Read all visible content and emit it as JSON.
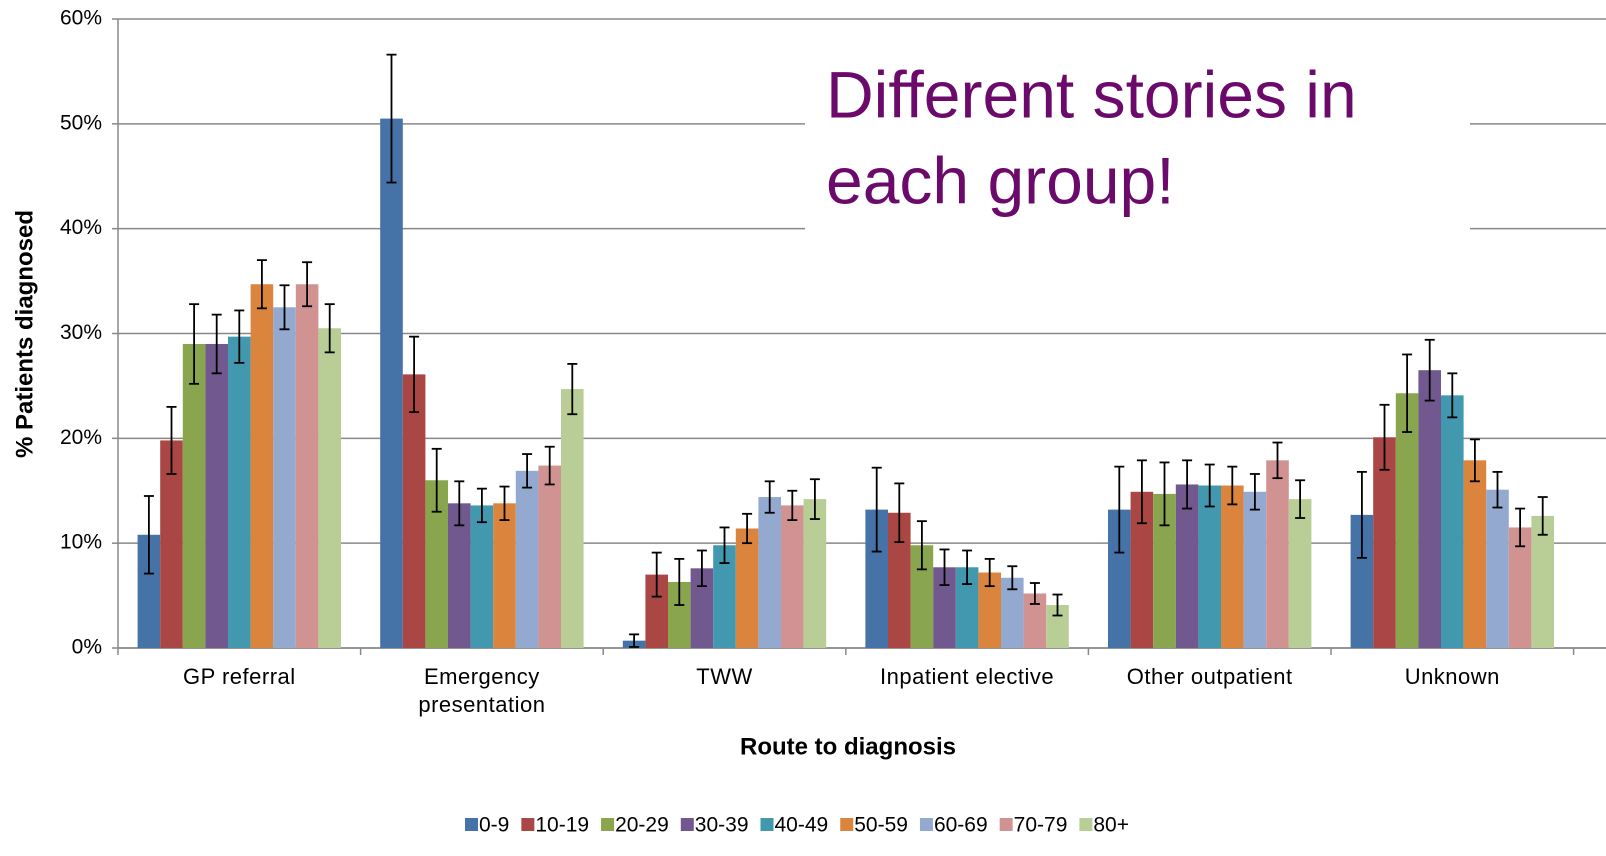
{
  "chart_data": {
    "type": "bar",
    "annotation": [
      "Different stories in",
      "each group!"
    ],
    "xlabel": "Route to diagnosis",
    "ylabel": "% Patients diagnosed",
    "categories": [
      "GP referral",
      "Emergency presentation",
      "TWW",
      "Inpatient elective",
      "Other outpatient",
      "Unknown"
    ],
    "series": [
      {
        "name": "0-9",
        "color": "#4572A7",
        "values": [
          10.8,
          50.5,
          0.7,
          13.2,
          13.2,
          12.7
        ],
        "errors": [
          3.7,
          6.1,
          0.6,
          4.0,
          4.1,
          4.1
        ]
      },
      {
        "name": "10-19",
        "color": "#AA4643",
        "values": [
          19.8,
          26.1,
          7.0,
          12.9,
          14.9,
          20.1
        ],
        "errors": [
          3.2,
          3.6,
          2.1,
          2.8,
          3.0,
          3.1
        ]
      },
      {
        "name": "20-29",
        "color": "#89A54E",
        "values": [
          29.0,
          16.0,
          6.3,
          9.8,
          14.7,
          24.3
        ],
        "errors": [
          3.8,
          3.0,
          2.2,
          2.3,
          3.0,
          3.7
        ]
      },
      {
        "name": "30-39",
        "color": "#71588F",
        "values": [
          29.0,
          13.8,
          7.6,
          7.7,
          15.6,
          26.5
        ],
        "errors": [
          2.8,
          2.1,
          1.7,
          1.7,
          2.3,
          2.9
        ]
      },
      {
        "name": "40-49",
        "color": "#4198AF",
        "values": [
          29.7,
          13.6,
          9.8,
          7.7,
          15.5,
          24.1
        ],
        "errors": [
          2.5,
          1.6,
          1.7,
          1.6,
          2.0,
          2.1
        ]
      },
      {
        "name": "50-59",
        "color": "#DB843D",
        "values": [
          34.7,
          13.8,
          11.4,
          7.2,
          15.5,
          17.9
        ],
        "errors": [
          2.3,
          1.6,
          1.4,
          1.3,
          1.8,
          2.0
        ]
      },
      {
        "name": "60-69",
        "color": "#93A9CF",
        "values": [
          32.5,
          16.9,
          14.4,
          6.7,
          14.9,
          15.1
        ],
        "errors": [
          2.1,
          1.6,
          1.5,
          1.1,
          1.7,
          1.7
        ]
      },
      {
        "name": "70-79",
        "color": "#D19392",
        "values": [
          34.7,
          17.4,
          13.6,
          5.2,
          17.9,
          11.5
        ],
        "errors": [
          2.1,
          1.8,
          1.4,
          1.0,
          1.7,
          1.8
        ]
      },
      {
        "name": "80+",
        "color": "#B9CD96",
        "values": [
          30.5,
          24.7,
          14.2,
          4.1,
          14.2,
          12.6
        ],
        "errors": [
          2.3,
          2.4,
          1.9,
          1.0,
          1.8,
          1.8
        ]
      }
    ],
    "ylim": [
      0,
      60
    ],
    "yticks": [
      {
        "value": 0,
        "label": "0%"
      },
      {
        "value": 10,
        "label": "10%"
      },
      {
        "value": 20,
        "label": "20%"
      },
      {
        "value": 30,
        "label": "30%"
      },
      {
        "value": 40,
        "label": "40%"
      },
      {
        "value": 50,
        "label": "50%"
      },
      {
        "value": 60,
        "label": "60%"
      }
    ],
    "grid": true,
    "legend": "bottom"
  }
}
